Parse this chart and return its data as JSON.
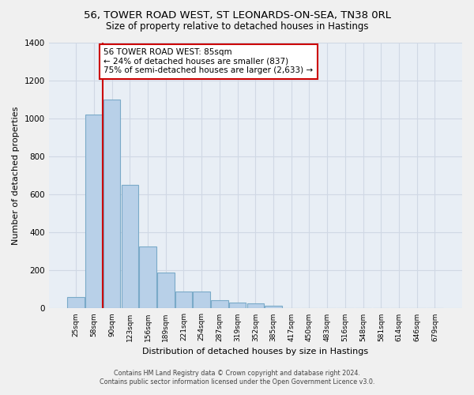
{
  "title1": "56, TOWER ROAD WEST, ST LEONARDS-ON-SEA, TN38 0RL",
  "title2": "Size of property relative to detached houses in Hastings",
  "xlabel": "Distribution of detached houses by size in Hastings",
  "ylabel": "Number of detached properties",
  "bins": [
    "25sqm",
    "58sqm",
    "90sqm",
    "123sqm",
    "156sqm",
    "189sqm",
    "221sqm",
    "254sqm",
    "287sqm",
    "319sqm",
    "352sqm",
    "385sqm",
    "417sqm",
    "450sqm",
    "483sqm",
    "516sqm",
    "548sqm",
    "581sqm",
    "614sqm",
    "646sqm",
    "679sqm"
  ],
  "bar_heights": [
    62,
    1020,
    1100,
    650,
    325,
    190,
    90,
    90,
    45,
    30,
    25,
    15,
    0,
    0,
    0,
    0,
    0,
    0,
    0,
    0,
    0
  ],
  "bar_color": "#b8d0e8",
  "bar_edge_color": "#7aaac8",
  "vline_color": "#cc0000",
  "annotation_line1": "56 TOWER ROAD WEST: 85sqm",
  "annotation_line2": "← 24% of detached houses are smaller (837)",
  "annotation_line3": "75% of semi-detached houses are larger (2,633) →",
  "annotation_box_color": "#ffffff",
  "annotation_box_edge": "#cc0000",
  "ylim": [
    0,
    1400
  ],
  "yticks": [
    0,
    200,
    400,
    600,
    800,
    1000,
    1200,
    1400
  ],
  "bg_color": "#e8eef5",
  "grid_color": "#d0d8e4",
  "footnote1": "Contains HM Land Registry data © Crown copyright and database right 2024.",
  "footnote2": "Contains public sector information licensed under the Open Government Licence v3.0.",
  "title1_fontsize": 9.5,
  "title2_fontsize": 8.5,
  "xlabel_fontsize": 8,
  "ylabel_fontsize": 8,
  "annot_fontsize": 7.5
}
